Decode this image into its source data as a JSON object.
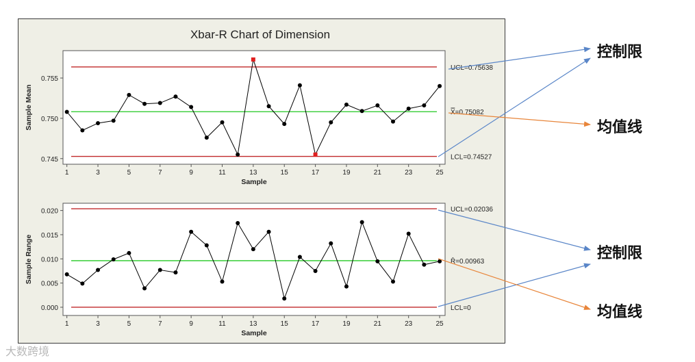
{
  "title": "Xbar-R Chart of Dimension",
  "annotations": {
    "top_limit": "控制限",
    "top_center": "均值线",
    "bottom_limit": "控制限",
    "bottom_center": "均值线"
  },
  "watermark": "大数跨境",
  "colors": {
    "limit_line": "#c0282a",
    "center_line": "#44d044",
    "limit_arrow": "#5a86c8",
    "center_arrow": "#e8853a",
    "flagged_point": "#e02020"
  },
  "chart_data": [
    {
      "type": "line",
      "name": "xbar",
      "xlabel": "Sample",
      "ylabel": "Sample Mean",
      "x": [
        1,
        2,
        3,
        4,
        5,
        6,
        7,
        8,
        9,
        10,
        11,
        12,
        13,
        14,
        15,
        16,
        17,
        18,
        19,
        20,
        21,
        22,
        23,
        24,
        25
      ],
      "values": [
        0.7508,
        0.7485,
        0.7494,
        0.7497,
        0.7529,
        0.7518,
        0.7519,
        0.7527,
        0.7514,
        0.7476,
        0.7495,
        0.7455,
        0.7573,
        0.7515,
        0.7493,
        0.7541,
        0.7455,
        0.7495,
        0.7517,
        0.7509,
        0.7516,
        0.7496,
        0.7512,
        0.7516,
        0.754
      ],
      "flagged": [
        12,
        16
      ],
      "xticks": [
        1,
        3,
        5,
        7,
        9,
        11,
        13,
        15,
        17,
        19,
        21,
        23,
        25
      ],
      "yticks": [
        "0.745",
        "0.750",
        "0.755"
      ],
      "ytick_values": [
        0.745,
        0.75,
        0.755
      ],
      "ylim": [
        0.7443,
        0.7584
      ],
      "xlim": [
        0.75,
        25.35
      ],
      "ucl": 0.75638,
      "center": 0.75082,
      "lcl": 0.74527,
      "ucl_label": "UCL=0.75638",
      "center_label": "X̿=0.75082",
      "lcl_label": "LCL=0.74527"
    },
    {
      "type": "line",
      "name": "range",
      "xlabel": "Sample",
      "ylabel": "Sample Range",
      "x": [
        1,
        2,
        3,
        4,
        5,
        6,
        7,
        8,
        9,
        10,
        11,
        12,
        13,
        14,
        15,
        16,
        17,
        18,
        19,
        20,
        21,
        22,
        23,
        24,
        25
      ],
      "values": [
        0.0068,
        0.0049,
        0.0077,
        0.0099,
        0.0112,
        0.0039,
        0.0077,
        0.0072,
        0.0156,
        0.0128,
        0.0053,
        0.0174,
        0.012,
        0.0156,
        0.0018,
        0.0104,
        0.0075,
        0.0132,
        0.0043,
        0.0176,
        0.0095,
        0.0053,
        0.0152,
        0.0088,
        0.0095
      ],
      "flagged": [],
      "xticks": [
        1,
        3,
        5,
        7,
        9,
        11,
        13,
        15,
        17,
        19,
        21,
        23,
        25
      ],
      "yticks": [
        "0.000",
        "0.005",
        "0.010",
        "0.015",
        "0.020"
      ],
      "ytick_values": [
        0,
        0.005,
        0.01,
        0.015,
        0.02
      ],
      "ylim": [
        -0.0017,
        0.0215
      ],
      "xlim": [
        0.75,
        25.35
      ],
      "ucl": 0.02036,
      "center": 0.00963,
      "lcl": 0,
      "ucl_label": "UCL=0.02036",
      "center_label": "R̄=0.00963",
      "lcl_label": "LCL=0"
    }
  ]
}
